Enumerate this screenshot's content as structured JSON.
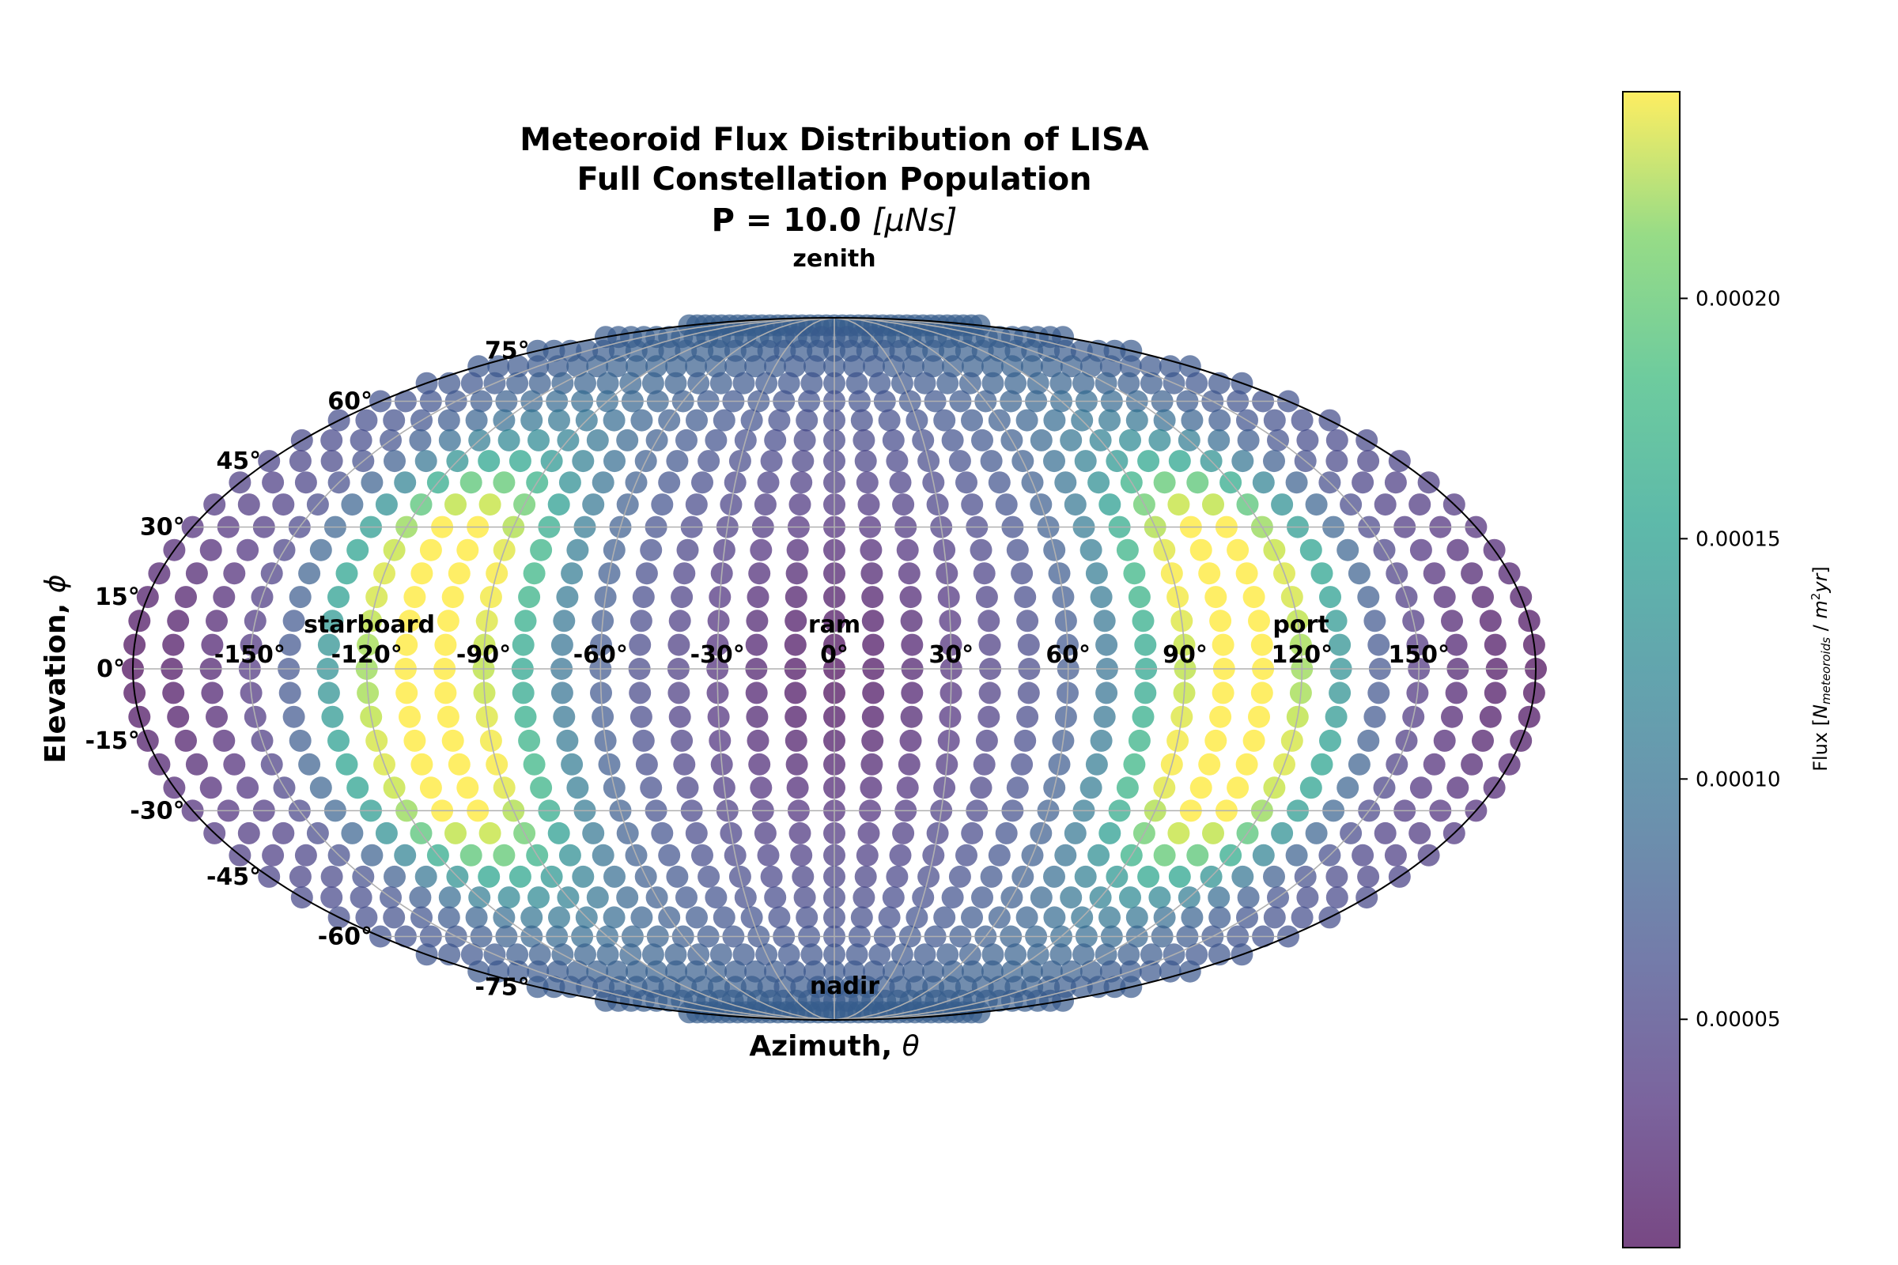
{
  "chart_data": {
    "type": "scatter",
    "projection": "mollweide",
    "title_lines": [
      "Meteoroid Flux Distribution of LISA",
      "Full Constellation Population"
    ],
    "title_param": {
      "prefix": "P = 10.0 ",
      "unit": "[μNs]"
    },
    "xlabel": {
      "text": "Azimuth, ",
      "symbol": "θ"
    },
    "ylabel": {
      "text": "Elevation, ",
      "symbol": "ϕ"
    },
    "direction_labels": {
      "zenith": "zenith",
      "nadir": "nadir",
      "ram": "ram",
      "starboard": "starboard",
      "port": "port"
    },
    "x_ticks": [
      "-150°",
      "-120°",
      "-90°",
      "-60°",
      "-30°",
      "0°",
      "30°",
      "60°",
      "90°",
      "120°",
      "150°"
    ],
    "y_ticks": [
      "-75°",
      "-60°",
      "-45°",
      "-30°",
      "-15°",
      "0°",
      "15°",
      "30°",
      "45°",
      "60°",
      "75°"
    ],
    "x_tick_values": [
      -150,
      -120,
      -90,
      -60,
      -30,
      0,
      30,
      60,
      90,
      120,
      150
    ],
    "y_tick_values": [
      -75,
      -60,
      -45,
      -30,
      -15,
      0,
      15,
      30,
      45,
      60,
      75
    ],
    "xlim": [
      -180,
      180
    ],
    "ylim": [
      -90,
      90
    ],
    "grid": true,
    "grid_step_deg": 30,
    "marker_opacity": 0.7,
    "colormap": "viridis",
    "colorbar": {
      "label": {
        "prefix": "Flux [",
        "numerator_main": "N",
        "numerator_sub": "meteoroids",
        "denominator_main": "m",
        "denominator_sup": "2",
        "denominator_rest": "yr",
        "suffix": "]"
      },
      "range": [
        2.5e-06,
        0.000243
      ],
      "ticks": [
        5e-05,
        0.0001,
        0.00015,
        0.0002
      ],
      "tick_labels": [
        "0.00005",
        "0.00010",
        "0.00015",
        "0.00020"
      ]
    },
    "points_grid": {
      "elevations_deg": [
        85,
        80,
        75,
        70,
        65,
        60,
        55,
        50,
        45,
        40,
        35,
        30,
        25,
        20,
        15,
        10,
        5,
        0,
        -5,
        -10,
        -15,
        -20,
        -25,
        -30,
        -35,
        -40,
        -45,
        -50,
        -55,
        -60,
        -65,
        -70,
        -75,
        -80,
        -85
      ],
      "azimuth_step_deg": 10,
      "azimuth_range_deg": [
        -180,
        180
      ],
      "value_model": {
        "base": 2.5e-06,
        "side_coefficient": 7e-05,
        "side_exponent": 1.5,
        "hotspots": [
          {
            "azimuth": -105,
            "elevation": 20,
            "peak": 0.00024,
            "spread_deg": 16
          },
          {
            "azimuth": -105,
            "elevation": -20,
            "peak": 0.00024,
            "spread_deg": 16
          },
          {
            "azimuth": 105,
            "elevation": 20,
            "peak": 0.00024,
            "spread_deg": 16
          },
          {
            "azimuth": 105,
            "elevation": -20,
            "peak": 0.00024,
            "spread_deg": 16
          }
        ]
      }
    }
  }
}
